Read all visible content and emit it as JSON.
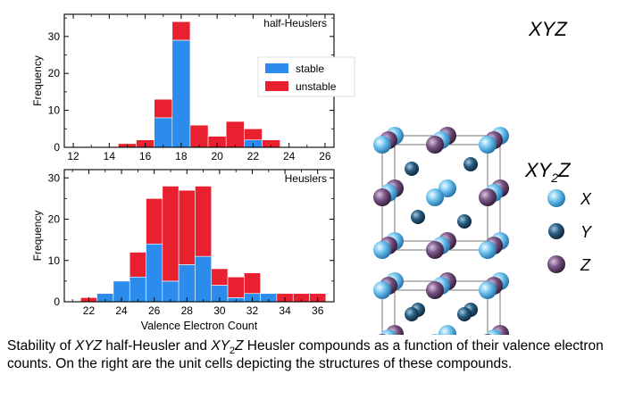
{
  "chart_data": [
    {
      "type": "bar",
      "stacked": true,
      "panel_label": "half-Heuslers",
      "xlabel": "",
      "ylabel": "Frequency",
      "xlim": [
        11.5,
        26.5
      ],
      "ylim": [
        0,
        36
      ],
      "xticks": [
        12,
        14,
        16,
        18,
        20,
        22,
        24,
        26
      ],
      "yticks": [
        0,
        10,
        20,
        30
      ],
      "legend": {
        "placement": "right",
        "entries": [
          "stable",
          "unstable"
        ]
      },
      "series": [
        {
          "name": "stable",
          "color": "#2b8cee",
          "x": [
            15,
            16,
            17,
            18,
            19,
            20,
            21,
            22,
            23
          ],
          "values": [
            0,
            0,
            8,
            29,
            0,
            0,
            0,
            2,
            0
          ]
        },
        {
          "name": "unstable",
          "color": "#e8202f",
          "x": [
            15,
            16,
            17,
            18,
            19,
            20,
            21,
            22,
            23
          ],
          "values": [
            1,
            2,
            5,
            5,
            6,
            3,
            7,
            3,
            2
          ]
        }
      ]
    },
    {
      "type": "bar",
      "stacked": true,
      "panel_label": "Heuslers",
      "xlabel": "Valence Electron Count",
      "ylabel": "Frequency",
      "xlim": [
        20.5,
        37
      ],
      "ylim": [
        0,
        32
      ],
      "xticks": [
        22,
        24,
        26,
        28,
        30,
        32,
        34,
        36
      ],
      "yticks": [
        0,
        10,
        20,
        30
      ],
      "series": [
        {
          "name": "stable",
          "color": "#2b8cee",
          "x": [
            22,
            23,
            24,
            25,
            26,
            27,
            28,
            29,
            30,
            31,
            32,
            33,
            34,
            35,
            36
          ],
          "values": [
            0,
            2,
            5,
            6,
            14,
            5,
            9,
            11,
            4,
            1,
            2,
            2,
            0,
            0,
            0
          ]
        },
        {
          "name": "unstable",
          "color": "#e8202f",
          "x": [
            22,
            23,
            24,
            25,
            26,
            27,
            28,
            29,
            30,
            31,
            32,
            33,
            34,
            35,
            36
          ],
          "values": [
            1,
            0,
            0,
            6,
            11,
            23,
            18,
            17,
            4,
            5,
            5,
            0,
            2,
            2,
            2
          ]
        }
      ]
    }
  ],
  "structures": {
    "top_label_parts": [
      "XYZ"
    ],
    "bottom_label_parts": [
      "XY",
      "2",
      "Z"
    ],
    "legend": [
      {
        "label": "X",
        "color": "#5bb7e6"
      },
      {
        "label": "Y",
        "color": "#1d4c6e"
      },
      {
        "label": "Z",
        "color": "#6e4a78"
      }
    ]
  },
  "caption": {
    "p1": "Stability of ",
    "i1": "XYZ",
    "p2": " half-Heusler and ",
    "i2": "XY",
    "sub": "2",
    "i3": "Z",
    "p3": " Heusler compounds as a function of their valence electron counts. On the right are the unit cells depicting the structures of these compounds."
  }
}
